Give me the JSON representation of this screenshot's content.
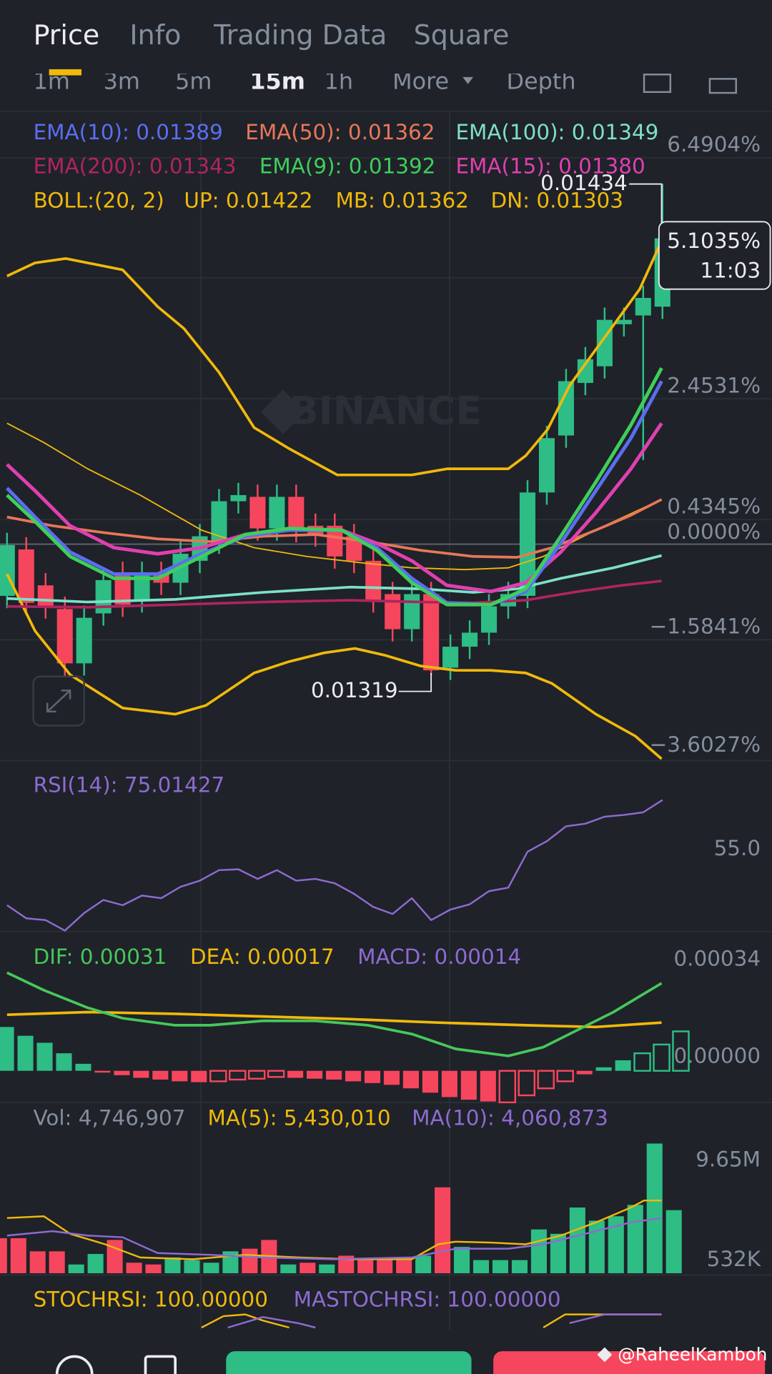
{
  "tabs": [
    "Price",
    "Info",
    "Trading Data",
    "Square"
  ],
  "timeframes": [
    "1m",
    "3m",
    "5m",
    "15m",
    "1h",
    "More",
    "Depth"
  ],
  "main_panel": {
    "legend": [
      [
        {
          "text": "EMA(10): 0.01389",
          "color": "#5b6ef0"
        },
        {
          "text": "EMA(50): 0.01362",
          "color": "#e8775a"
        },
        {
          "text": "EMA(100): 0.01349",
          "color": "#7ee0c8"
        }
      ],
      [
        {
          "text": "EMA(200): 0.01343",
          "color": "#b0245f"
        },
        {
          "text": "EMA(9): 0.01392",
          "color": "#3ecf5a"
        },
        {
          "text": "EMA(15): 0.01380",
          "color": "#e040b0"
        }
      ],
      [
        {
          "text": "BOLL:(20, 2)",
          "color": "#f0b90b"
        },
        {
          "text": "UP: 0.01422",
          "color": "#f0b90b"
        },
        {
          "text": "MB: 0.01362",
          "color": "#f0b90b"
        },
        {
          "text": "DN: 0.01303",
          "color": "#f0b90b"
        }
      ]
    ],
    "axis_labels": [
      "6.4904%",
      "2.4531%",
      "0.4345%",
      "0.0000%",
      "−1.5841%",
      "−3.6027%"
    ],
    "price_badge": {
      "change": "5.1035%",
      "countdown": "11:03"
    },
    "high_label": "0.01434",
    "low_label": "0.01319",
    "watermark": "BINANCE"
  },
  "rsi_panel": {
    "legend": [
      {
        "text": "RSI(14): 75.01427",
        "color": "#8e6bd1"
      }
    ],
    "axis_labels": [
      "55.0"
    ]
  },
  "macd_panel": {
    "legend": [
      {
        "text": "DIF: 0.00031",
        "color": "#46c85a"
      },
      {
        "text": "DEA: 0.00017",
        "color": "#f0b90b"
      },
      {
        "text": "MACD: 0.00014",
        "color": "#8e6bd1"
      }
    ],
    "axis_labels": [
      "0.00034",
      "0.00000"
    ]
  },
  "volume_panel": {
    "legend": [
      {
        "text": "Vol: 4,746,907",
        "color": "#848e9c"
      },
      {
        "text": "MA(5): 5,430,010",
        "color": "#f0b90b"
      },
      {
        "text": "MA(10): 4,060,873",
        "color": "#8e6bd1"
      }
    ],
    "axis_labels": [
      "9.65M",
      "532K"
    ]
  },
  "stochrsi_panel": {
    "legend": [
      {
        "text": "STOCHRSI: 100.00000",
        "color": "#f0b90b"
      },
      {
        "text": "MASTOCHRSI: 100.00000",
        "color": "#8e6bd1"
      }
    ]
  },
  "credit": "@RaheelKamboh"
}
